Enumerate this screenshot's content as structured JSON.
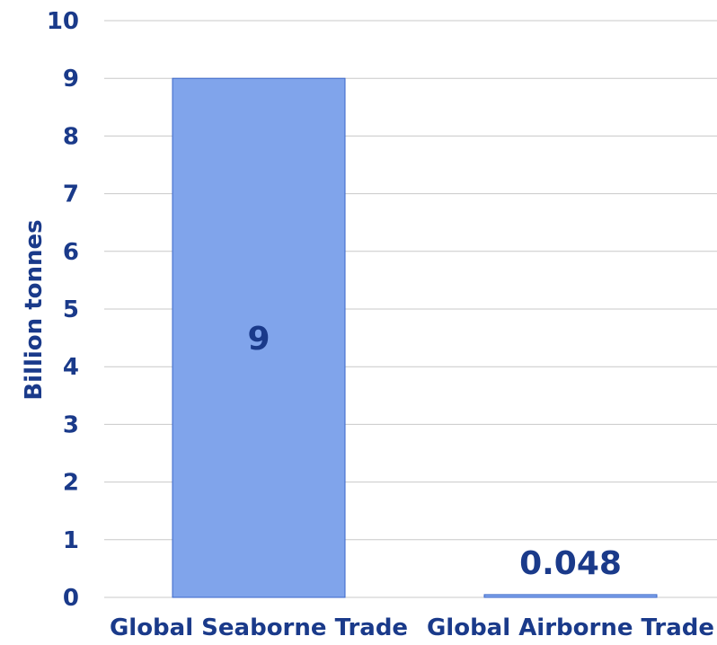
{
  "chart_data": {
    "type": "bar",
    "title": "",
    "xlabel": "",
    "ylabel": "Billion  tonnes",
    "categories": [
      "Global Seaborne Trade",
      "Global Airborne Trade"
    ],
    "values": [
      9,
      0.048
    ],
    "data_labels": [
      "9",
      "0.048"
    ],
    "data_label_position": [
      "inside-center",
      "above"
    ],
    "ylim": [
      0,
      10
    ],
    "yticks": [
      "0",
      "1",
      "2",
      "3",
      "4",
      "5",
      "6",
      "7",
      "8",
      "9",
      "10"
    ],
    "grid": true,
    "legend": "none",
    "colors": {
      "bar_fill": "#80a4eb",
      "bar_stroke": "#3a66c8",
      "text": "#1a3a8a",
      "gridline": "#c8c8c8"
    }
  }
}
